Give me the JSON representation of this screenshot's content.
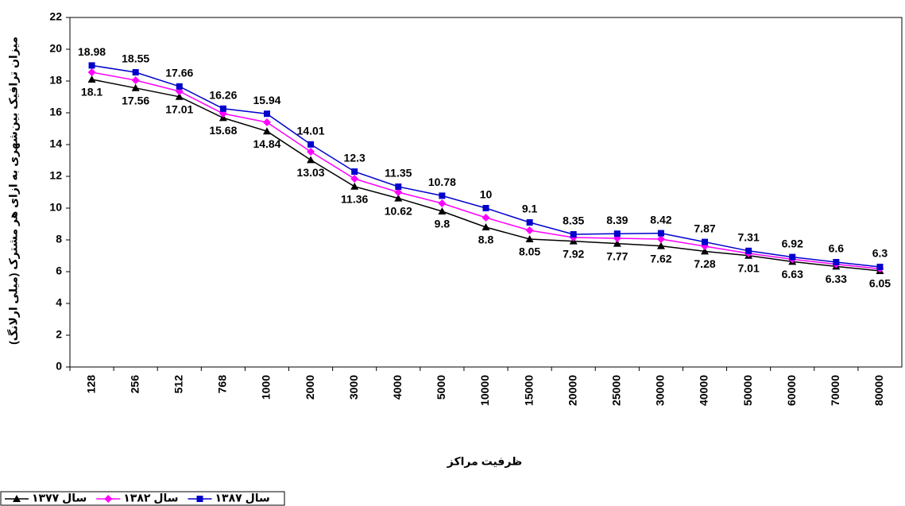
{
  "chart_data": {
    "type": "line",
    "x_label": "ظرفیت مراکز",
    "y_label": "میزان ترافیک بین‌شهری به ازای هر مشترک (میلی ارلانگ)",
    "categories": [
      "128",
      "256",
      "512",
      "768",
      "1000",
      "2000",
      "3000",
      "4000",
      "5000",
      "10000",
      "15000",
      "20000",
      "25000",
      "30000",
      "40000",
      "50000",
      "60000",
      "70000",
      "80000"
    ],
    "series": [
      {
        "name": "سال ۱۳۷۷",
        "color": "#000000",
        "marker": "triangle",
        "label_position": "below",
        "values": [
          18.1,
          17.56,
          17.01,
          15.68,
          14.84,
          13.03,
          11.36,
          10.62,
          9.8,
          8.8,
          8.05,
          7.92,
          7.77,
          7.62,
          7.28,
          7.01,
          6.63,
          6.33,
          6.05
        ]
      },
      {
        "name": "سال ۱۳۸۲",
        "color": "#ff00ff",
        "marker": "diamond",
        "values": [
          18.55,
          18.05,
          17.35,
          15.95,
          15.4,
          13.55,
          11.85,
          11.0,
          10.3,
          9.4,
          8.6,
          8.15,
          8.1,
          8.05,
          7.6,
          7.15,
          6.78,
          6.47,
          6.18
        ]
      },
      {
        "name": "سال ۱۳۸۷",
        "color": "#0000cc",
        "marker": "square",
        "label_position": "above",
        "values": [
          18.98,
          18.55,
          17.66,
          16.26,
          15.94,
          14.01,
          12.3,
          11.35,
          10.78,
          10,
          9.1,
          8.35,
          8.39,
          8.42,
          7.87,
          7.31,
          6.92,
          6.6,
          6.3
        ]
      }
    ],
    "ylim": [
      0,
      22
    ],
    "yticks": [
      0,
      2,
      4,
      6,
      8,
      10,
      12,
      14,
      16,
      18,
      20,
      22
    ],
    "grid": false,
    "legend": "bottom-left"
  }
}
